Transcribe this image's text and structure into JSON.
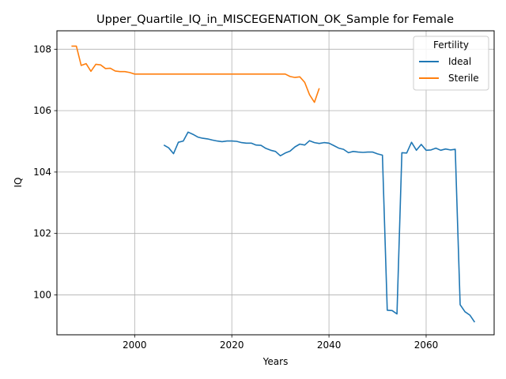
{
  "chart_data": {
    "type": "line",
    "title": "Upper_Quartile_IQ_in_MISCEGENATION_OK_Sample for Female",
    "xlabel": "Years",
    "ylabel": "IQ",
    "xlim": [
      1984,
      2074
    ],
    "ylim": [
      98.7,
      108.6
    ],
    "x_ticks": [
      2000,
      2020,
      2040,
      2060
    ],
    "y_ticks": [
      100,
      102,
      104,
      106,
      108
    ],
    "grid": true,
    "legend": {
      "title": "Fertility",
      "position": "top-right"
    },
    "series": [
      {
        "name": "Ideal",
        "color": "#1f77b4",
        "x": [
          2006,
          2007,
          2008,
          2009,
          2010,
          2011,
          2012,
          2013,
          2014,
          2015,
          2016,
          2017,
          2018,
          2019,
          2020,
          2021,
          2022,
          2023,
          2024,
          2025,
          2026,
          2027,
          2028,
          2029,
          2030,
          2031,
          2032,
          2033,
          2034,
          2035,
          2036,
          2037,
          2038,
          2039,
          2040,
          2041,
          2042,
          2043,
          2044,
          2045,
          2046,
          2047,
          2048,
          2049,
          2050,
          2051,
          2052,
          2053,
          2054,
          2055,
          2056,
          2057,
          2058,
          2059,
          2060,
          2061,
          2062,
          2063,
          2064,
          2065,
          2066,
          2067,
          2068,
          2069,
          2070
        ],
        "values": [
          104.88,
          104.79,
          104.6,
          104.97,
          105.01,
          105.3,
          105.23,
          105.14,
          105.1,
          105.08,
          105.04,
          105.01,
          104.99,
          105.01,
          105.01,
          105.0,
          104.96,
          104.94,
          104.94,
          104.88,
          104.87,
          104.77,
          104.71,
          104.67,
          104.53,
          104.62,
          104.68,
          104.82,
          104.91,
          104.88,
          105.02,
          104.96,
          104.93,
          104.96,
          104.94,
          104.86,
          104.78,
          104.74,
          104.63,
          104.67,
          104.65,
          104.64,
          104.65,
          104.65,
          104.59,
          104.55,
          99.5,
          99.49,
          99.38,
          104.63,
          104.62,
          104.97,
          104.71,
          104.9,
          104.71,
          104.72,
          104.78,
          104.71,
          104.75,
          104.72,
          104.74,
          99.68,
          99.45,
          99.34,
          99.11
        ]
      },
      {
        "name": "Sterile",
        "color": "#ff7f0e",
        "x": [
          1987,
          1988,
          1989,
          1990,
          1991,
          1992,
          1993,
          1994,
          1995,
          1996,
          1997,
          1998,
          1999,
          2000,
          2001,
          2002,
          2003,
          2004,
          2005,
          2006,
          2007,
          2008,
          2009,
          2010,
          2011,
          2012,
          2013,
          2014,
          2015,
          2016,
          2017,
          2018,
          2019,
          2020,
          2021,
          2022,
          2023,
          2024,
          2025,
          2026,
          2027,
          2028,
          2029,
          2030,
          2031,
          2032,
          2033,
          2034,
          2035,
          2036,
          2037,
          2038
        ],
        "values": [
          108.1,
          108.1,
          107.47,
          107.53,
          107.28,
          107.51,
          107.49,
          107.37,
          107.38,
          107.29,
          107.27,
          107.27,
          107.24,
          107.19,
          107.19,
          107.19,
          107.19,
          107.19,
          107.19,
          107.19,
          107.19,
          107.19,
          107.19,
          107.19,
          107.19,
          107.19,
          107.19,
          107.19,
          107.19,
          107.19,
          107.19,
          107.19,
          107.19,
          107.19,
          107.19,
          107.19,
          107.19,
          107.19,
          107.19,
          107.19,
          107.19,
          107.19,
          107.19,
          107.19,
          107.19,
          107.11,
          107.08,
          107.1,
          106.92,
          106.52,
          106.27,
          106.73
        ]
      }
    ]
  }
}
